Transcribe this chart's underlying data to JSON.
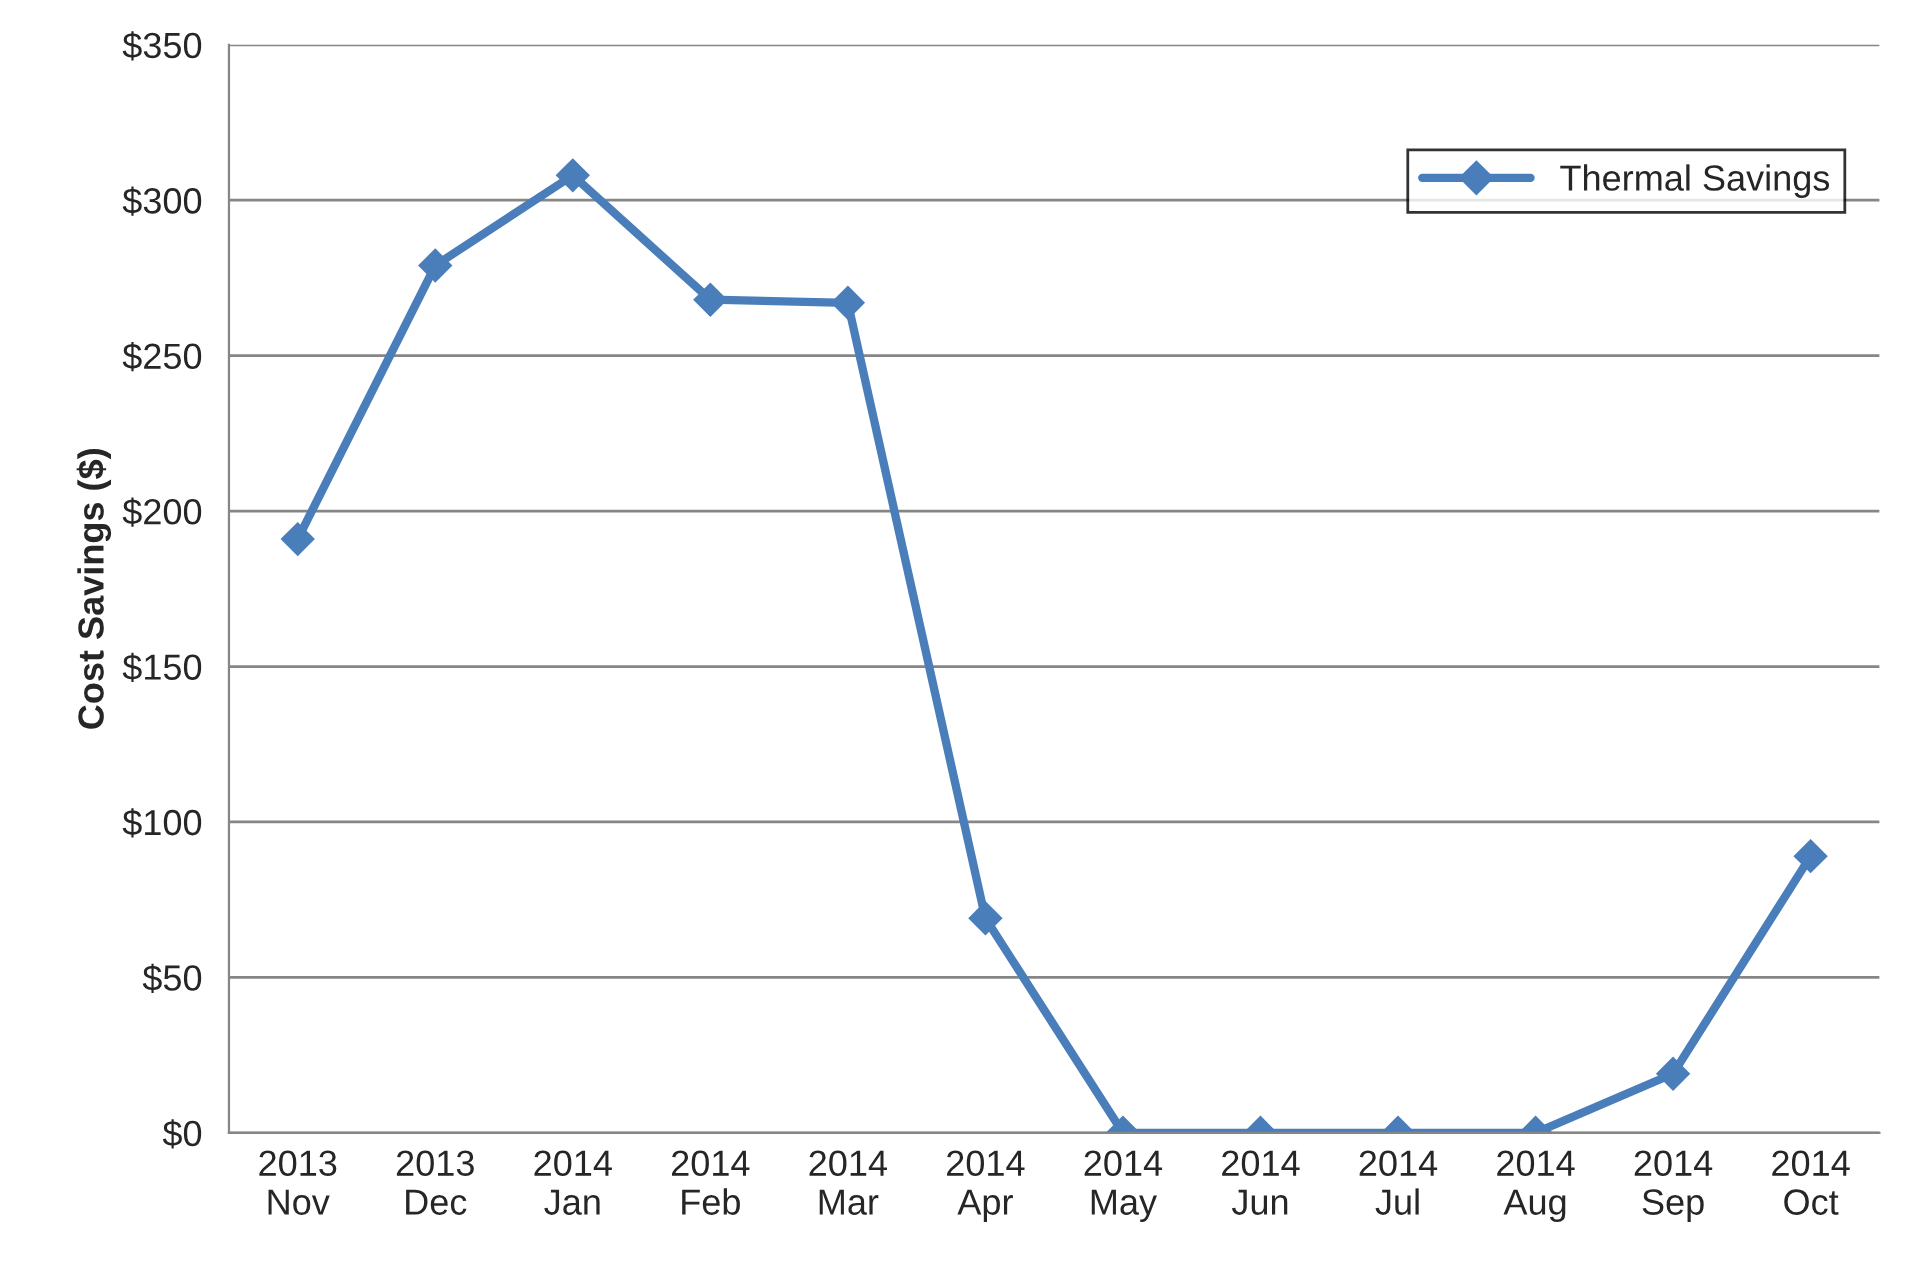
{
  "chart_data": {
    "type": "line",
    "ylabel": "Cost Savings ($)",
    "categories": [
      "2013\nNov",
      "2013\nDec",
      "2014\nJan",
      "2014\nFeb",
      "2014\nMar",
      "2014\nApr",
      "2014\nMay",
      "2014\nJun",
      "2014\nJul",
      "2014\nAug",
      "2014\nSep",
      "2014\nOct"
    ],
    "series": [
      {
        "name": "Thermal Savings",
        "color": "#4a7ebb",
        "values": [
          191,
          279,
          308,
          268,
          267,
          69,
          0,
          0,
          0,
          0,
          19,
          89
        ]
      }
    ],
    "ylim": [
      0,
      350
    ],
    "yticks": [
      {
        "value": 0,
        "label": "$0"
      },
      {
        "value": 50,
        "label": "$50"
      },
      {
        "value": 100,
        "label": "$100"
      },
      {
        "value": 150,
        "label": "$150"
      },
      {
        "value": 200,
        "label": "$200"
      },
      {
        "value": 250,
        "label": "$250"
      },
      {
        "value": 300,
        "label": "$300"
      },
      {
        "value": 350,
        "label": "$350"
      }
    ],
    "grid": "y",
    "legend": "top right",
    "marker": "diamond",
    "line_style": "solid"
  }
}
